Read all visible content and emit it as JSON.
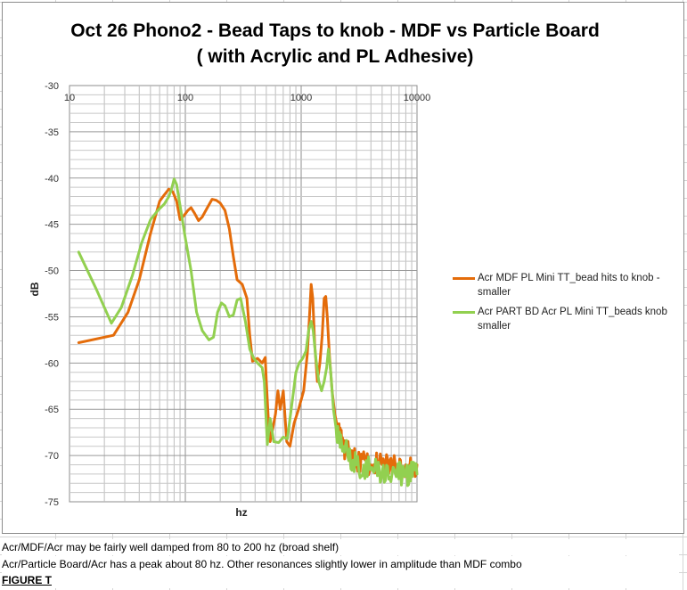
{
  "notes": {
    "line1": "Acr/MDF/Acr may be fairly well damped from 80 to 200 hz (broad shelf)",
    "line2": "Acr/Particle Board/Acr has a peak about 80 hz. Other resonances slightly lower in amplitude than MDF combo",
    "figure_label": "FIGURE T"
  },
  "chart_data": {
    "type": "line",
    "title": "Oct 26 Phono2 - Bead Taps to knob - MDF vs Particle Board",
    "subtitle": "( with Acrylic and PL Adhesive)",
    "xlabel": "hz",
    "ylabel": "dB",
    "x_scale": "log",
    "xlim": [
      10,
      10000
    ],
    "ylim": [
      -75,
      -30
    ],
    "x_ticks": [
      "10",
      "100",
      "1000",
      "10000"
    ],
    "y_ticks": [
      "-30",
      "-35",
      "-40",
      "-45",
      "-50",
      "-55",
      "-60",
      "-65",
      "-70",
      "-75"
    ],
    "grid": true,
    "legend_position": "right",
    "series": [
      {
        "name": "Acr MDF PL Mini TT_bead hits to knob - smaller",
        "color": "#E46C0A",
        "points": [
          [
            12,
            -57.8
          ],
          [
            24,
            -57
          ],
          [
            32,
            -54.5
          ],
          [
            40,
            -51
          ],
          [
            50,
            -46
          ],
          [
            60,
            -42.5
          ],
          [
            66,
            -41.8
          ],
          [
            72,
            -41.2
          ],
          [
            78,
            -41.5
          ],
          [
            84,
            -42.5
          ],
          [
            90,
            -44.5
          ],
          [
            98,
            -44
          ],
          [
            105,
            -43.5
          ],
          [
            112,
            -43.2
          ],
          [
            120,
            -43.8
          ],
          [
            130,
            -44.6
          ],
          [
            140,
            -44.2
          ],
          [
            155,
            -43.2
          ],
          [
            170,
            -42.3
          ],
          [
            185,
            -42.4
          ],
          [
            200,
            -42.7
          ],
          [
            220,
            -43.5
          ],
          [
            240,
            -45.5
          ],
          [
            260,
            -48.5
          ],
          [
            280,
            -51
          ],
          [
            310,
            -51.5
          ],
          [
            340,
            -53
          ],
          [
            360,
            -57
          ],
          [
            380,
            -59.8
          ],
          [
            420,
            -59.5
          ],
          [
            460,
            -60
          ],
          [
            490,
            -59.4
          ],
          [
            500,
            -62
          ],
          [
            520,
            -66
          ],
          [
            540,
            -68.5
          ],
          [
            570,
            -67
          ],
          [
            600,
            -65.5
          ],
          [
            630,
            -63
          ],
          [
            660,
            -65
          ],
          [
            700,
            -63
          ],
          [
            750,
            -68.5
          ],
          [
            800,
            -69
          ],
          [
            870,
            -66.5
          ],
          [
            950,
            -65
          ],
          [
            1050,
            -63
          ],
          [
            1130,
            -59
          ],
          [
            1180,
            -55
          ],
          [
            1220,
            -51.5
          ],
          [
            1260,
            -53
          ],
          [
            1310,
            -58
          ],
          [
            1380,
            -62
          ],
          [
            1450,
            -60
          ],
          [
            1520,
            -57
          ],
          [
            1580,
            -53
          ],
          [
            1630,
            -52.8
          ],
          [
            1680,
            -55
          ],
          [
            1750,
            -59
          ],
          [
            1850,
            -63
          ],
          [
            1950,
            -65.5
          ],
          [
            2100,
            -67.5
          ],
          [
            2400,
            -69.5
          ],
          [
            3000,
            -70.5
          ],
          [
            4000,
            -71
          ],
          [
            5000,
            -71
          ],
          [
            6500,
            -71
          ],
          [
            8000,
            -71
          ],
          [
            10000,
            -71
          ]
        ]
      },
      {
        "name": "Acr PART BD Acr PL Mini TT_beads knob smaller",
        "color": "#92D050",
        "points": [
          [
            12,
            -48
          ],
          [
            17,
            -52
          ],
          [
            23,
            -55.7
          ],
          [
            28,
            -54
          ],
          [
            35,
            -50.5
          ],
          [
            42,
            -47
          ],
          [
            50,
            -44.5
          ],
          [
            58,
            -43.5
          ],
          [
            66,
            -42.8
          ],
          [
            72,
            -42
          ],
          [
            76,
            -41.2
          ],
          [
            80,
            -40.1
          ],
          [
            84,
            -40.7
          ],
          [
            90,
            -43
          ],
          [
            100,
            -46.5
          ],
          [
            112,
            -50
          ],
          [
            125,
            -54.5
          ],
          [
            140,
            -56.5
          ],
          [
            160,
            -57.5
          ],
          [
            175,
            -57.2
          ],
          [
            190,
            -54.5
          ],
          [
            205,
            -53.5
          ],
          [
            220,
            -53.8
          ],
          [
            240,
            -55
          ],
          [
            260,
            -54.8
          ],
          [
            280,
            -53.2
          ],
          [
            300,
            -53
          ],
          [
            330,
            -55.5
          ],
          [
            360,
            -58.5
          ],
          [
            390,
            -59.5
          ],
          [
            420,
            -60
          ],
          [
            460,
            -60.5
          ],
          [
            480,
            -62
          ],
          [
            510,
            -68.8
          ],
          [
            540,
            -66
          ],
          [
            580,
            -68.5
          ],
          [
            640,
            -68.6
          ],
          [
            700,
            -68
          ],
          [
            760,
            -68.2
          ],
          [
            820,
            -65
          ],
          [
            860,
            -63
          ],
          [
            900,
            -61
          ],
          [
            960,
            -60
          ],
          [
            1030,
            -59.5
          ],
          [
            1100,
            -58.7
          ],
          [
            1160,
            -56.5
          ],
          [
            1220,
            -55.5
          ],
          [
            1270,
            -56.5
          ],
          [
            1340,
            -59.5
          ],
          [
            1420,
            -62
          ],
          [
            1500,
            -63
          ],
          [
            1580,
            -62
          ],
          [
            1660,
            -60.5
          ],
          [
            1720,
            -58.5
          ],
          [
            1800,
            -61
          ],
          [
            1900,
            -65
          ],
          [
            2000,
            -67
          ],
          [
            2300,
            -69
          ],
          [
            3000,
            -71
          ],
          [
            4000,
            -71.5
          ],
          [
            5000,
            -71.8
          ],
          [
            6500,
            -72
          ],
          [
            8000,
            -72
          ],
          [
            10000,
            -72
          ]
        ]
      }
    ]
  }
}
